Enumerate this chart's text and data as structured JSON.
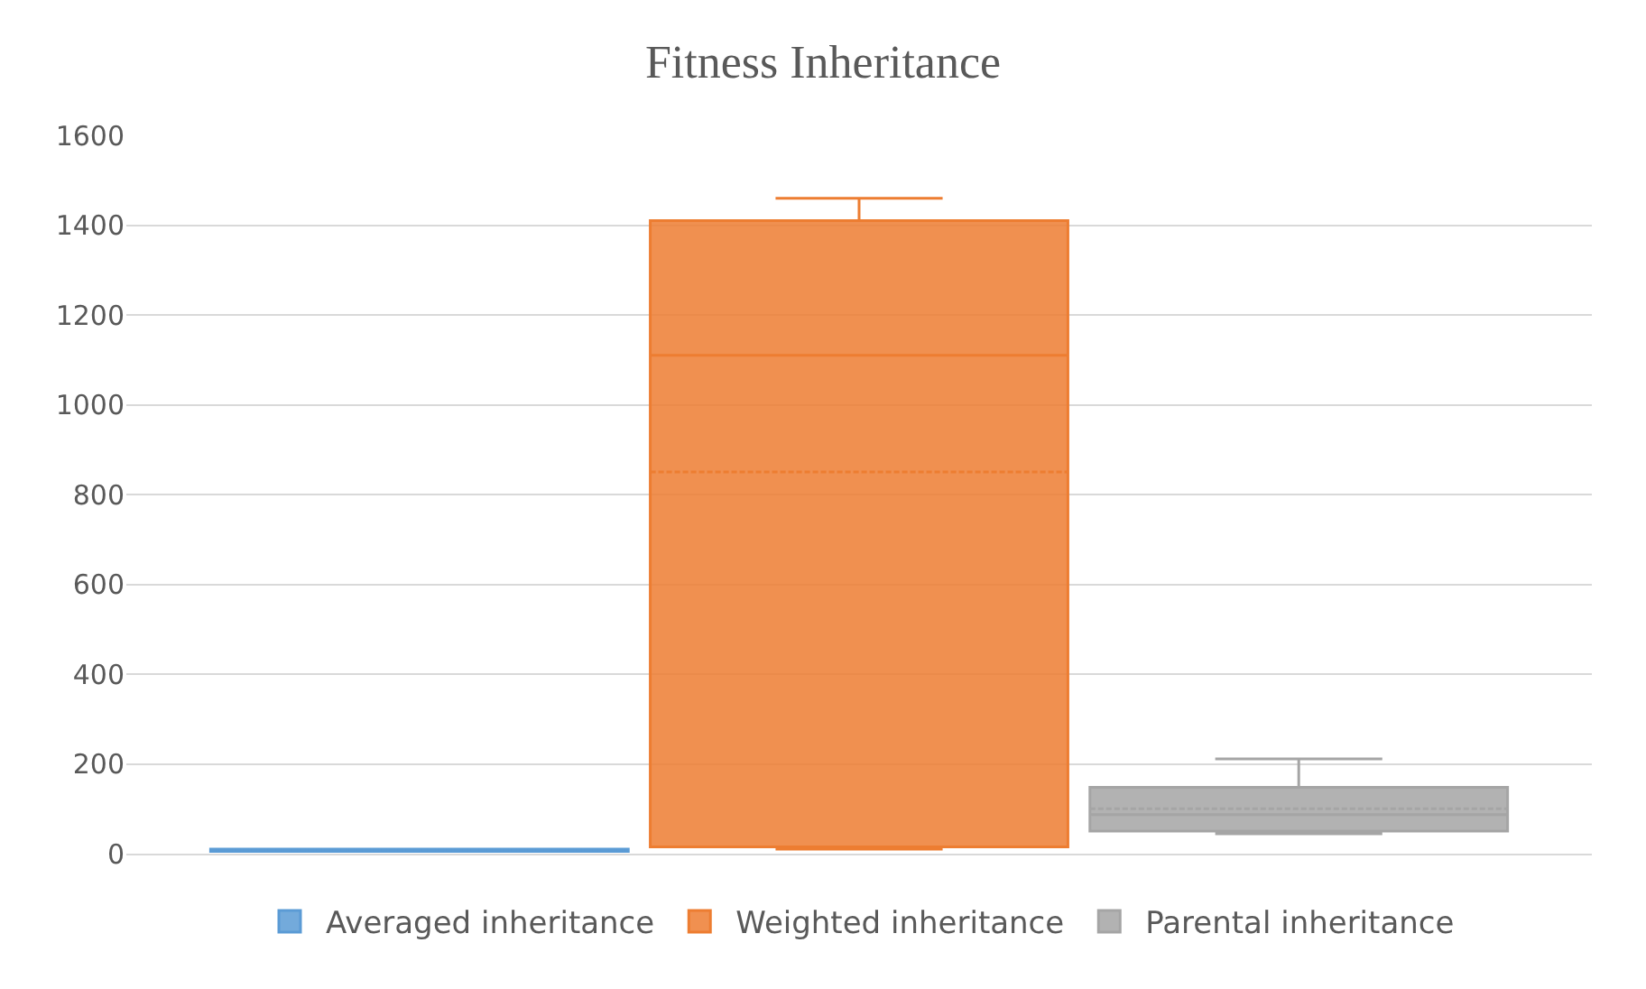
{
  "chart_data": {
    "type": "box",
    "title": "Fitness Inheritance",
    "categories": [
      null
    ],
    "series": [
      {
        "name": "Averaged inheritance",
        "color": "#5b9bd5",
        "boxes": [
          {
            "low": 5,
            "q1": 5,
            "median": 8,
            "q3": 10,
            "high": 10,
            "mean": 8
          }
        ]
      },
      {
        "name": "Weighted inheritance",
        "color": "#ed7d31",
        "boxes": [
          {
            "low": 10,
            "q1": 15,
            "median": 1110,
            "q3": 1410,
            "high": 1460,
            "mean": 850
          }
        ]
      },
      {
        "name": "Parental inheritance",
        "color": "#a5a5a5",
        "boxes": [
          {
            "low": 44,
            "q1": 50,
            "median": 87,
            "q3": 148,
            "high": 211,
            "mean": 100
          }
        ]
      }
    ],
    "ylim": [
      0,
      1600
    ],
    "yticks": [
      0,
      200,
      400,
      600,
      800,
      1000,
      1200,
      1400,
      1600
    ],
    "grid": "y",
    "legend": "bottom"
  }
}
